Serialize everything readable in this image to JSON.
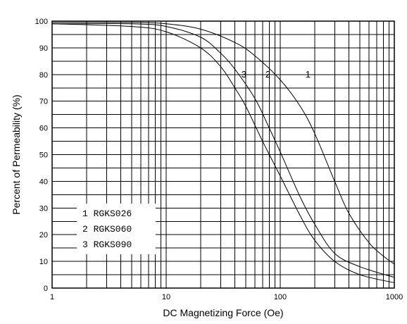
{
  "chart_data": {
    "type": "line",
    "title": "",
    "xlabel": "DC Magnetizing Force (Oe)",
    "ylabel": "Percent of Permeability (%)",
    "xscale": "log",
    "xlim": [
      1,
      1000
    ],
    "ylim": [
      0,
      100
    ],
    "grid": true,
    "x_ticks": [
      "1",
      "10",
      "100",
      "1000"
    ],
    "y_ticks": [
      "0",
      "10",
      "20",
      "30",
      "40",
      "50",
      "60",
      "70",
      "80",
      "90",
      "100"
    ],
    "legend_placement": "bottom-left",
    "series": [
      {
        "name": "1 RGKS026",
        "label": "1",
        "x": [
          1,
          5,
          10,
          20,
          40,
          60,
          100,
          150,
          200,
          300,
          400,
          600,
          800,
          1000
        ],
        "y": [
          99.5,
          99.5,
          99,
          97,
          92,
          87,
          78,
          68,
          58,
          40,
          28,
          17,
          12,
          9
        ]
      },
      {
        "name": "2 RGKS060",
        "label": "2",
        "x": [
          1,
          5,
          10,
          20,
          30,
          40,
          60,
          80,
          100,
          150,
          200,
          300,
          500,
          1000
        ],
        "y": [
          99,
          99,
          98,
          94,
          88,
          82,
          71,
          60,
          51,
          34,
          24,
          13,
          8,
          4
        ]
      },
      {
        "name": "3 RGKS090",
        "label": "3",
        "x": [
          1,
          5,
          10,
          20,
          30,
          40,
          50,
          70,
          100,
          150,
          200,
          300,
          500,
          1000
        ],
        "y": [
          99,
          98,
          96,
          90,
          83,
          75,
          68,
          55,
          42,
          27,
          18,
          10,
          5,
          2
        ]
      }
    ]
  }
}
